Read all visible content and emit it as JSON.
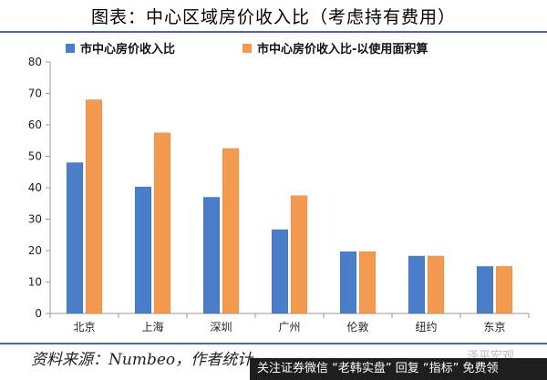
{
  "header": {
    "title": "图表：中心区域房价收入比（考虑持有费用）"
  },
  "footer": {
    "source": "资料来源：Numbeo，作者统计",
    "watermark": "泽平宏观",
    "banner": "关注证券微信 “老韩实盘” 回复 “指标” 免费领"
  },
  "colors": {
    "series1": "#4a7ec8",
    "series2": "#f39a4e",
    "axis": "#999999"
  },
  "chart_data": {
    "type": "bar",
    "title": "",
    "xlabel": "",
    "ylabel": "",
    "ylim": [
      0,
      80
    ],
    "yticks": [
      0,
      10,
      20,
      30,
      40,
      50,
      60,
      70,
      80
    ],
    "grid": false,
    "legend_position": "top-left",
    "categories": [
      "北京",
      "上海",
      "深圳",
      "广州",
      "伦敦",
      "纽约",
      "东京"
    ],
    "series": [
      {
        "name": "市中心房价收入比",
        "values": [
          48,
          40.3,
          37,
          26.7,
          19.7,
          18.3,
          15
        ]
      },
      {
        "name": "市中心房价收入比-以使用面积算",
        "values": [
          68,
          57.5,
          52.5,
          37.5,
          19.7,
          18.3,
          15
        ]
      }
    ]
  }
}
